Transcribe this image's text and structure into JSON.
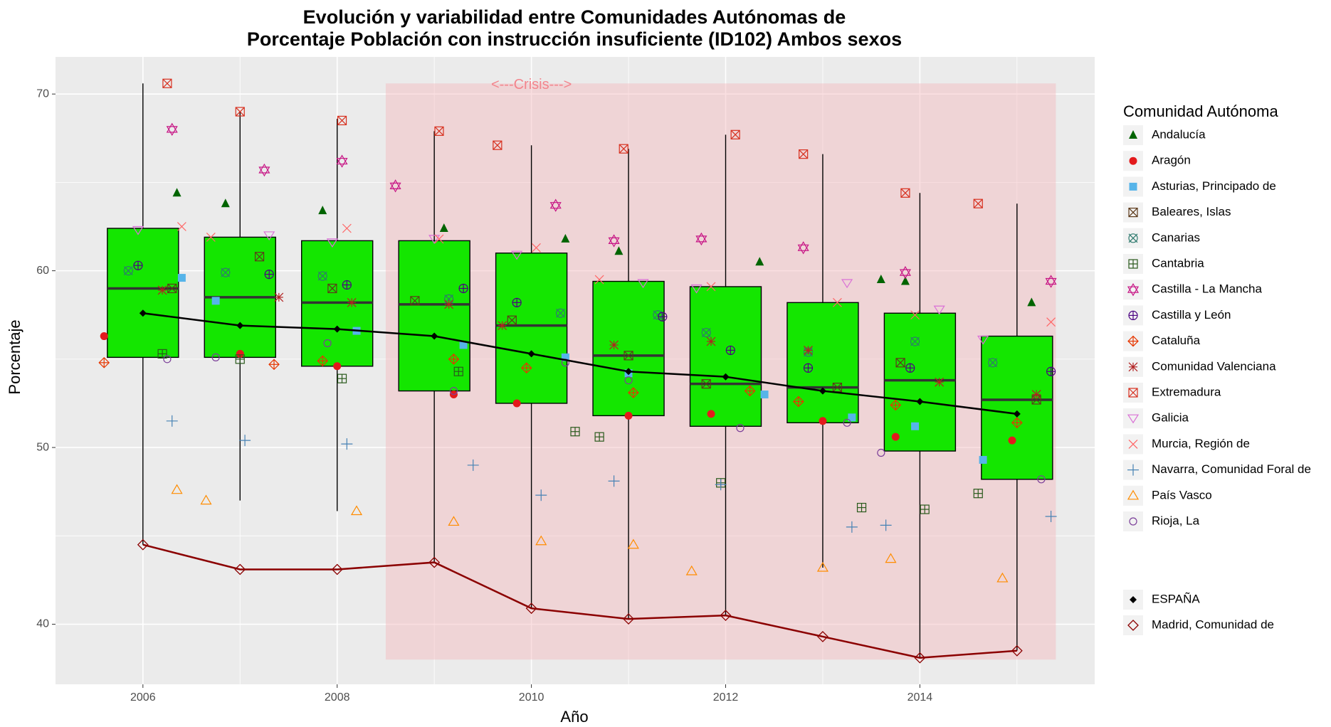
{
  "chart_data": {
    "type": "boxplot",
    "title_line1": "Evolución y variabilidad entre Comunidades Autónomas de",
    "title_line2": "Porcentaje Población con instrucción insuficiente (ID102) Ambos sexos",
    "xlabel": "Año",
    "ylabel": "Porcentaje",
    "xlim": [
      2005.1,
      2015.8
    ],
    "ylim": [
      36.6,
      72.1
    ],
    "x_ticks": [
      "2006",
      "2008",
      "2010",
      "2012",
      "2014"
    ],
    "y_ticks": [
      "40",
      "50",
      "60",
      "70"
    ],
    "grid": true,
    "legend_position": "right",
    "legend_title": "Comunidad Autónoma",
    "annotation": {
      "text": "<---Crisis--->",
      "x": 2010,
      "y": 70.5
    },
    "crisis_region": {
      "x": [
        2008.5,
        2015.4
      ],
      "y": [
        38,
        70.6
      ],
      "color": "#f4b9bd"
    },
    "colors": {
      "box_fill": "#14e600",
      "panel": "#ebebeb",
      "espana": "#000000",
      "madrid": "#8b0000",
      "annotation": "#f3848c"
    },
    "boxes": [
      {
        "x": 2006,
        "min": 44.5,
        "q1": 55.1,
        "median": 59.0,
        "q3": 62.4,
        "max": 70.6
      },
      {
        "x": 2007,
        "min": 47.0,
        "q1": 55.1,
        "median": 58.5,
        "q3": 61.9,
        "max": 69.0
      },
      {
        "x": 2008,
        "min": 46.4,
        "q1": 54.6,
        "median": 58.2,
        "q3": 61.7,
        "max": 68.6
      },
      {
        "x": 2009,
        "min": 43.5,
        "q1": 53.2,
        "median": 58.1,
        "q3": 61.7,
        "max": 67.9
      },
      {
        "x": 2010,
        "min": 40.9,
        "q1": 52.5,
        "median": 56.9,
        "q3": 61.0,
        "max": 67.1
      },
      {
        "x": 2011,
        "min": 40.3,
        "q1": 51.8,
        "median": 55.2,
        "q3": 59.4,
        "max": 66.9
      },
      {
        "x": 2012,
        "min": 40.5,
        "q1": 51.2,
        "median": 53.6,
        "q3": 59.1,
        "max": 67.7
      },
      {
        "x": 2013,
        "min": 43.2,
        "q1": 51.4,
        "median": 53.4,
        "q3": 58.2,
        "max": 66.6
      },
      {
        "x": 2014,
        "min": 38.1,
        "q1": 49.8,
        "median": 53.8,
        "q3": 57.6,
        "max": 64.4
      },
      {
        "x": 2015,
        "min": 38.5,
        "q1": 48.2,
        "median": 52.7,
        "q3": 56.3,
        "max": 63.8
      }
    ],
    "series": [
      {
        "name": "Andalucía",
        "shape": "triangle",
        "color": "#006400",
        "x": [
          2006.35,
          2006.85,
          2007.85,
          2009.1,
          2010.35,
          2010.9,
          2012.35,
          2013.6,
          2013.85,
          2015.15
        ],
        "y": [
          64.4,
          63.8,
          63.4,
          62.4,
          61.8,
          61.1,
          60.5,
          59.5,
          59.4,
          58.2
        ]
      },
      {
        "name": "Aragón",
        "shape": "circle",
        "color": "#e31a1c",
        "x": [
          2005.6,
          2007.0,
          2008.0,
          2009.2,
          2009.85,
          2011.0,
          2011.85,
          2013.0,
          2013.75,
          2014.95
        ],
        "y": [
          56.3,
          55.3,
          54.6,
          53.0,
          52.5,
          51.8,
          51.9,
          51.5,
          50.6,
          50.4
        ]
      },
      {
        "name": "Asturias, Principado de",
        "shape": "square",
        "color": "#56b4e9",
        "x": [
          2006.4,
          2006.75,
          2008.2,
          2009.3,
          2010.35,
          2011.0,
          2012.4,
          2013.3,
          2013.95,
          2014.65
        ],
        "y": [
          59.6,
          58.3,
          56.6,
          55.8,
          55.1,
          54.2,
          53.0,
          51.7,
          51.2,
          49.3
        ]
      },
      {
        "name": "Baleares, Islas",
        "shape": "boxx",
        "color": "#5d3a1a",
        "x": [
          2006.3,
          2007.2,
          2007.95,
          2008.8,
          2009.8,
          2011.0,
          2011.8,
          2013.15,
          2013.8,
          2015.2
        ],
        "y": [
          59.0,
          60.8,
          59.0,
          58.3,
          57.2,
          55.2,
          53.6,
          53.4,
          54.8,
          52.7
        ]
      },
      {
        "name": "Canarias",
        "shape": "star",
        "color": "#2e7a6e",
        "x": [
          2005.85,
          2006.85,
          2007.85,
          2009.15,
          2010.3,
          2011.3,
          2011.8,
          2012.85,
          2013.95,
          2014.75
        ],
        "y": [
          60.0,
          59.9,
          59.7,
          58.4,
          57.6,
          57.5,
          56.5,
          55.4,
          56.0,
          54.8
        ]
      },
      {
        "name": "Cantabria",
        "shape": "boxplus",
        "color": "#2a5a1c",
        "x": [
          2006.2,
          2007.0,
          2008.05,
          2009.25,
          2010.45,
          2010.7,
          2011.95,
          2013.4,
          2014.05,
          2014.6
        ],
        "y": [
          55.3,
          55.0,
          53.9,
          54.3,
          50.9,
          50.6,
          48.0,
          46.6,
          46.5,
          47.4
        ]
      },
      {
        "name": "Castilla - La Mancha",
        "shape": "hexagram",
        "color": "#c71585",
        "x": [
          2006.3,
          2007.25,
          2008.05,
          2008.6,
          2010.25,
          2010.85,
          2011.75,
          2012.8,
          2013.85,
          2015.35
        ],
        "y": [
          68.0,
          65.7,
          66.2,
          64.8,
          63.7,
          61.7,
          61.8,
          61.3,
          59.9,
          59.4
        ]
      },
      {
        "name": "Castilla y León",
        "shape": "circleplus",
        "color": "#4b0082",
        "x": [
          2005.95,
          2007.3,
          2008.1,
          2009.3,
          2009.85,
          2011.35,
          2012.05,
          2012.85,
          2013.9,
          2015.35
        ],
        "y": [
          60.3,
          59.8,
          59.2,
          59.0,
          58.2,
          57.4,
          55.5,
          54.5,
          54.5,
          54.3
        ]
      },
      {
        "name": "Cataluña",
        "shape": "diamondplus",
        "color": "#e63600",
        "x": [
          2005.6,
          2007.35,
          2007.85,
          2009.2,
          2009.95,
          2011.05,
          2012.25,
          2012.75,
          2013.75,
          2015.0
        ],
        "y": [
          54.8,
          54.7,
          54.9,
          55.0,
          54.5,
          53.1,
          53.2,
          52.6,
          52.4,
          51.4
        ]
      },
      {
        "name": "Comunidad Valenciana",
        "shape": "asterisk",
        "color": "#b22222",
        "x": [
          2006.2,
          2007.4,
          2008.15,
          2009.15,
          2009.7,
          2010.85,
          2011.85,
          2012.85,
          2014.2,
          2015.2
        ],
        "y": [
          58.9,
          58.5,
          58.2,
          58.1,
          56.9,
          55.8,
          56.0,
          55.5,
          53.7,
          53.0
        ]
      },
      {
        "name": "Extremadura",
        "shape": "boxx",
        "color": "#d7301f",
        "x": [
          2006.25,
          2007.0,
          2008.05,
          2009.05,
          2009.65,
          2010.95,
          2012.1,
          2012.8,
          2013.85,
          2014.6
        ],
        "y": [
          70.6,
          69.0,
          68.5,
          67.9,
          67.1,
          66.9,
          67.7,
          66.6,
          64.4,
          63.8
        ]
      },
      {
        "name": "Galicia",
        "shape": "triangledown",
        "color": "#da70d6",
        "x": [
          2005.95,
          2007.3,
          2007.95,
          2009.0,
          2009.85,
          2011.15,
          2011.7,
          2013.25,
          2014.2,
          2014.65
        ],
        "y": [
          62.3,
          62.0,
          61.6,
          61.8,
          60.9,
          59.3,
          59.0,
          59.3,
          57.8,
          56.1
        ]
      },
      {
        "name": "Murcia, Región de",
        "shape": "x",
        "color": "#ff6666",
        "x": [
          2006.4,
          2006.7,
          2008.1,
          2009.05,
          2010.05,
          2010.7,
          2011.85,
          2013.15,
          2013.95,
          2015.35
        ],
        "y": [
          62.5,
          61.9,
          62.4,
          61.8,
          61.3,
          59.5,
          59.1,
          58.2,
          57.5,
          57.1
        ]
      },
      {
        "name": "Navarra, Comunidad Foral de",
        "shape": "plus",
        "color": "#4682b4",
        "x": [
          2006.3,
          2007.05,
          2008.1,
          2009.4,
          2010.1,
          2010.85,
          2011.95,
          2013.3,
          2013.65,
          2015.35
        ],
        "y": [
          51.5,
          50.4,
          50.2,
          49.0,
          47.3,
          48.1,
          47.9,
          45.5,
          45.6,
          46.1
        ]
      },
      {
        "name": "País Vasco",
        "shape": "triangleopen",
        "color": "#ff8c00",
        "x": [
          2006.35,
          2006.65,
          2008.2,
          2009.2,
          2010.1,
          2011.05,
          2011.65,
          2013.0,
          2013.7,
          2014.85
        ],
        "y": [
          47.6,
          47.0,
          46.4,
          45.8,
          44.7,
          44.5,
          43.0,
          43.2,
          43.7,
          42.6
        ]
      },
      {
        "name": "Rioja, La",
        "shape": "circleopen",
        "color": "#7b3f99",
        "x": [
          2006.25,
          2006.75,
          2007.9,
          2009.2,
          2010.35,
          2011.0,
          2012.15,
          2013.25,
          2013.6,
          2015.25
        ],
        "y": [
          55.0,
          55.1,
          55.9,
          53.2,
          54.8,
          53.8,
          51.1,
          51.4,
          49.7,
          48.2
        ]
      }
    ],
    "espana": {
      "name": "ESPAÑA",
      "x": [
        2006,
        2007,
        2008,
        2009,
        2010,
        2011,
        2012,
        2013,
        2014,
        2015
      ],
      "y": [
        57.6,
        56.9,
        56.7,
        56.3,
        55.3,
        54.3,
        54.0,
        53.2,
        52.6,
        51.9
      ]
    },
    "madrid": {
      "name": "Madrid, Comunidad de",
      "x": [
        2006,
        2007,
        2008,
        2009,
        2010,
        2011,
        2012,
        2013,
        2014,
        2015
      ],
      "y": [
        44.5,
        43.1,
        43.1,
        43.5,
        40.9,
        40.3,
        40.5,
        39.3,
        38.1,
        38.5
      ]
    }
  }
}
